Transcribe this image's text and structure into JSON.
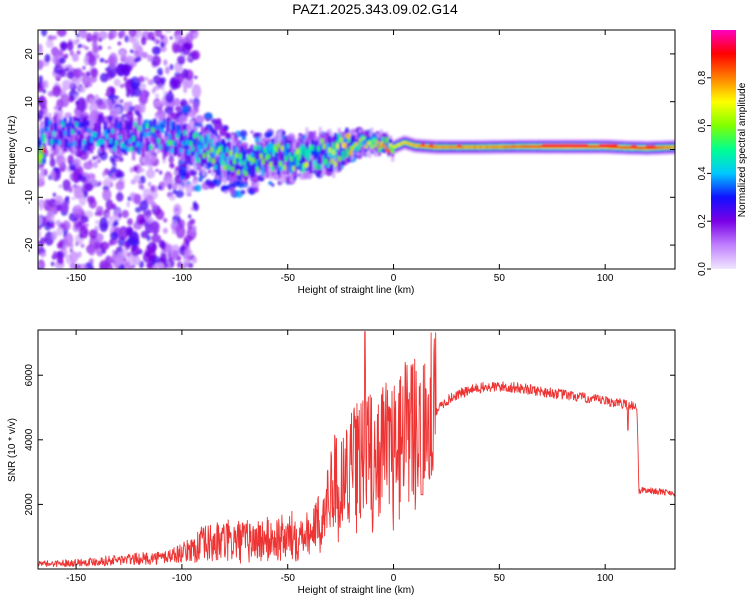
{
  "title": "PAZ1.2025.343.09.02.G14",
  "chart_data": [
    {
      "type": "heatmap",
      "xlabel": "Height of straight line (km)",
      "ylabel": "Frequency (Hz)",
      "xlim": [
        -168,
        133
      ],
      "ylim": [
        -25,
        25
      ],
      "xticks": [
        -150,
        -100,
        -50,
        0,
        50,
        100
      ],
      "yticks": [
        -20,
        -10,
        0,
        10,
        20
      ],
      "colorbar": {
        "label": "Normalized spectral amplitude",
        "range": [
          0,
          1
        ],
        "ticks": [
          "0.0",
          "0.2",
          "0.4",
          "0.6",
          "0.8"
        ],
        "colors": [
          "#f0e6ff",
          "#c080ff",
          "#7a00e6",
          "#1010ff",
          "#00c8ff",
          "#00ff90",
          "#80ff00",
          "#ffff00",
          "#ff8000",
          "#ff0000",
          "#ff00c0"
        ]
      },
      "ridge": [
        {
          "x": -165,
          "f": 4.0,
          "a": 0.38
        },
        {
          "x": -150,
          "f": 3.5,
          "a": 0.4
        },
        {
          "x": -135,
          "f": 3.0,
          "a": 0.42
        },
        {
          "x": -120,
          "f": 2.5,
          "a": 0.45
        },
        {
          "x": -110,
          "f": 3.0,
          "a": 0.48
        },
        {
          "x": -100,
          "f": 1.5,
          "a": 0.46
        },
        {
          "x": -90,
          "f": 0.0,
          "a": 0.5
        },
        {
          "x": -80,
          "f": -2.0,
          "a": 0.55
        },
        {
          "x": -70,
          "f": -3.0,
          "a": 0.55
        },
        {
          "x": -60,
          "f": -1.5,
          "a": 0.56
        },
        {
          "x": -50,
          "f": -2.0,
          "a": 0.58
        },
        {
          "x": -40,
          "f": -1.0,
          "a": 0.6
        },
        {
          "x": -30,
          "f": -1.0,
          "a": 0.62
        },
        {
          "x": -20,
          "f": 1.0,
          "a": 0.66
        },
        {
          "x": -10,
          "f": 1.5,
          "a": 0.68
        },
        {
          "x": 0,
          "f": 0.5,
          "a": 0.72
        },
        {
          "x": 5,
          "f": 1.5,
          "a": 0.74
        },
        {
          "x": 10,
          "f": 0.8,
          "a": 0.78
        },
        {
          "x": 20,
          "f": 0.5,
          "a": 0.82
        },
        {
          "x": 40,
          "f": 0.5,
          "a": 0.8
        },
        {
          "x": 60,
          "f": 0.6,
          "a": 0.86
        },
        {
          "x": 80,
          "f": 0.6,
          "a": 0.95
        },
        {
          "x": 100,
          "f": 0.6,
          "a": 0.92
        },
        {
          "x": 110,
          "f": 0.4,
          "a": 0.88
        },
        {
          "x": 120,
          "f": 0.3,
          "a": 0.9
        },
        {
          "x": 133,
          "f": 0.5,
          "a": 0.8
        }
      ]
    },
    {
      "type": "line",
      "xlabel": "Height of straight line (km)",
      "ylabel": "SNR (10 * v/v)",
      "xlim": [
        -168,
        133
      ],
      "ylim": [
        0,
        7400
      ],
      "xticks": [
        -150,
        -100,
        -50,
        0,
        50,
        100
      ],
      "yticks": [
        2000,
        4000,
        6000
      ],
      "color": "#ee3333",
      "series": [
        {
          "name": "SNR",
          "x": [
            -168,
            -150,
            -130,
            -110,
            -100,
            -90,
            -80,
            -70,
            -60,
            -50,
            -45,
            -40,
            -35,
            -30,
            -28,
            -25,
            -22,
            -20,
            -17,
            -15,
            -12,
            -10,
            -5,
            0,
            5,
            10,
            15,
            20,
            25,
            30,
            35,
            40,
            50,
            60,
            70,
            80,
            90,
            100,
            110,
            114,
            115,
            116,
            118,
            125,
            133
          ],
          "values": [
            150,
            200,
            280,
            350,
            500,
            750,
            850,
            850,
            900,
            950,
            1100,
            1200,
            1500,
            2400,
            2800,
            2800,
            3000,
            3200,
            3400,
            3500,
            3700,
            3600,
            3800,
            3900,
            4200,
            4500,
            4700,
            4900,
            5200,
            5400,
            5500,
            5600,
            5650,
            5600,
            5500,
            5400,
            5300,
            5200,
            5100,
            5050,
            5000,
            2400,
            2450,
            2400,
            2350
          ]
        }
      ]
    }
  ]
}
